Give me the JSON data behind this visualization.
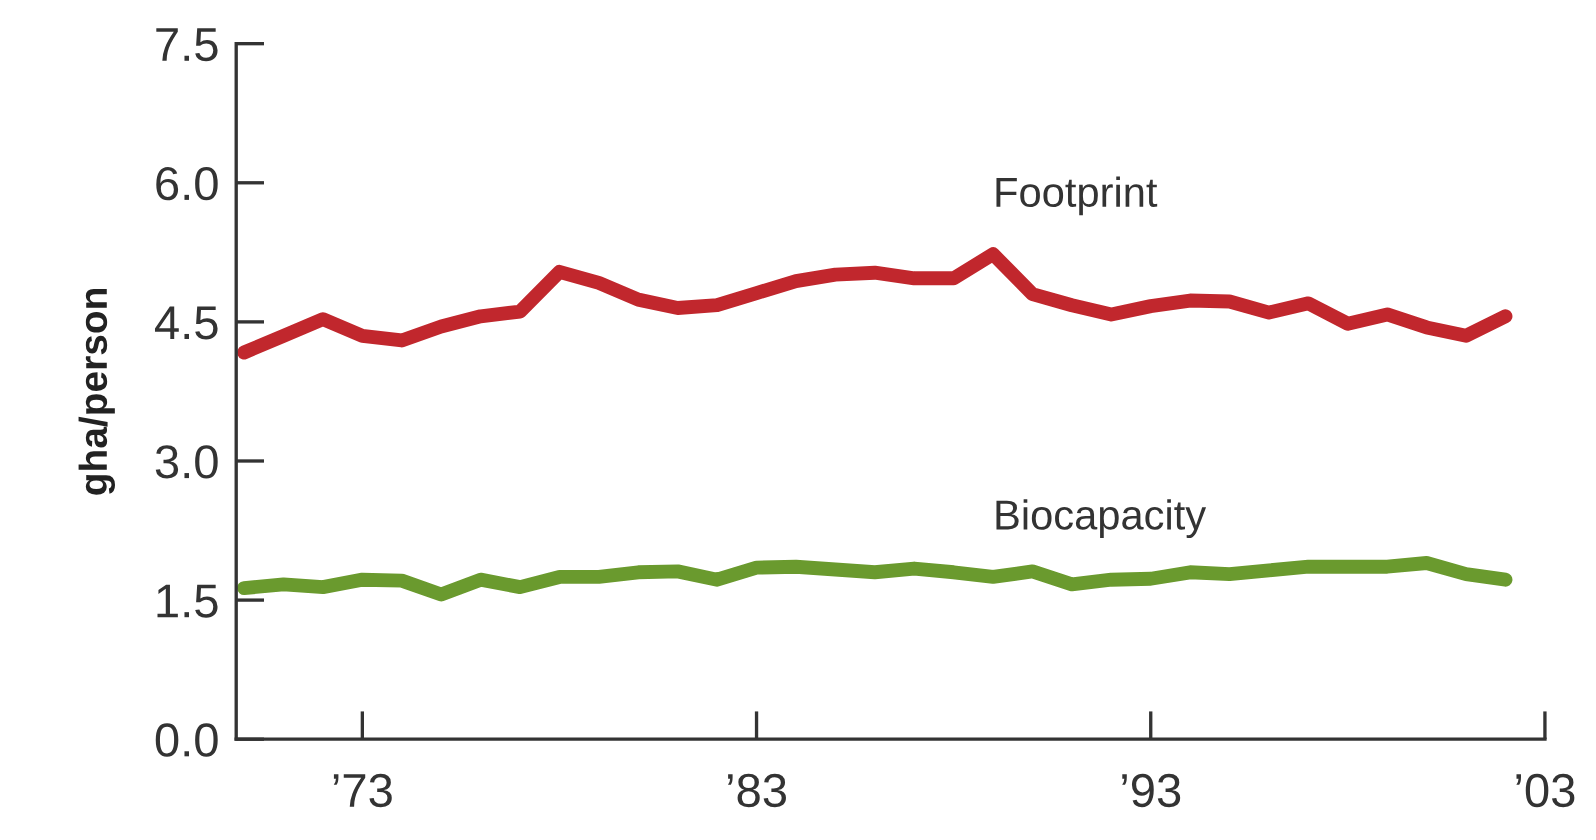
{
  "chart_data": {
    "type": "line",
    "ylabel": "gha/person",
    "x": [
      1970,
      1971,
      1972,
      1973,
      1974,
      1975,
      1976,
      1977,
      1978,
      1979,
      1980,
      1981,
      1982,
      1983,
      1984,
      1985,
      1986,
      1987,
      1988,
      1989,
      1990,
      1991,
      1992,
      1993,
      1994,
      1995,
      1996,
      1997,
      1998,
      1999,
      2000,
      2001,
      2002
    ],
    "series": [
      {
        "name": "Footprint",
        "color": "#c1272d",
        "values": [
          4.17,
          4.35,
          4.53,
          4.35,
          4.3,
          4.45,
          4.56,
          4.61,
          5.04,
          4.92,
          4.74,
          4.65,
          4.68,
          4.81,
          4.94,
          5.01,
          5.03,
          4.97,
          4.97,
          5.23,
          4.8,
          4.68,
          4.58,
          4.67,
          4.73,
          4.72,
          4.6,
          4.7,
          4.48,
          4.58,
          4.44,
          4.35,
          4.56
        ]
      },
      {
        "name": "Biocapacity",
        "color": "#6a9a2e",
        "values": [
          1.63,
          1.67,
          1.64,
          1.72,
          1.71,
          1.56,
          1.72,
          1.64,
          1.75,
          1.75,
          1.8,
          1.81,
          1.72,
          1.85,
          1.86,
          1.83,
          1.8,
          1.84,
          1.8,
          1.75,
          1.81,
          1.67,
          1.72,
          1.73,
          1.8,
          1.78,
          1.82,
          1.86,
          1.86,
          1.86,
          1.9,
          1.78,
          1.72
        ]
      }
    ],
    "xlim": [
      1969.8,
      2003
    ],
    "xticks": [
      {
        "value": 1973,
        "label": "’73"
      },
      {
        "value": 1983,
        "label": "’83"
      },
      {
        "value": 1993,
        "label": "’93"
      },
      {
        "value": 2003,
        "label": "’03"
      }
    ],
    "ylim": [
      0,
      7.5
    ],
    "yticks": [
      {
        "value": 0,
        "label": "0.0"
      },
      1.5,
      {
        "value": 3,
        "label": "3.0"
      },
      4.5,
      {
        "value": 6,
        "label": "6.0"
      },
      7.5
    ],
    "grid": false,
    "legend": false,
    "marker": "none",
    "line_style": "solid"
  }
}
